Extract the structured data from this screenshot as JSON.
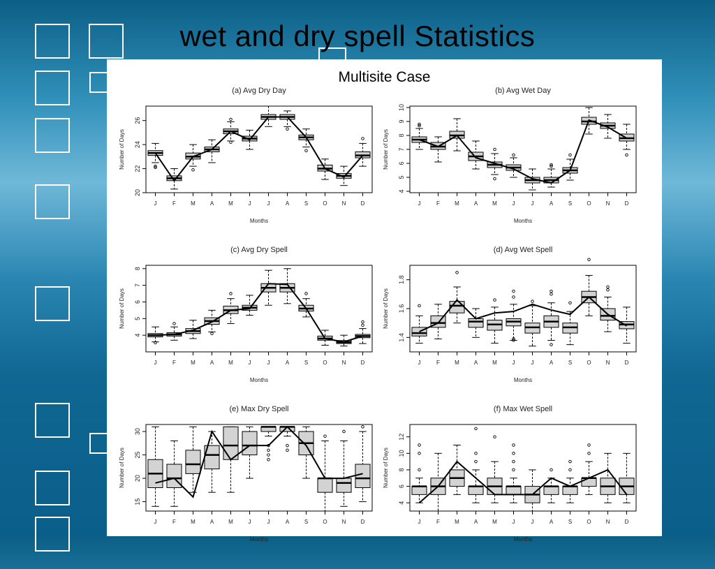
{
  "slide": {
    "title": "wet and dry spell Statistics",
    "subtitle": "Multisite Case",
    "colors": {
      "background": "#0c6a94",
      "deco_border": "#ffffff",
      "panel": "#ffffff",
      "box_fill": "#d3d3d3"
    }
  },
  "chart_data": [
    {
      "type": "box",
      "title": "(a) Avg Dry Day",
      "xlabel": "Months",
      "ylabel": "Number of Days",
      "categories": [
        "J",
        "F",
        "M",
        "A",
        "M",
        "J",
        "J",
        "A",
        "S",
        "O",
        "N",
        "D"
      ],
      "ylim": [
        20,
        27.2
      ],
      "yticks": [
        20,
        22,
        24,
        26
      ],
      "boxes": [
        {
          "min": 22.5,
          "q1": 23.1,
          "median": 23.3,
          "q3": 23.5,
          "max": 24.1,
          "outliers": [
            22.2,
            22.1
          ]
        },
        {
          "min": 20.3,
          "q1": 21.0,
          "median": 21.2,
          "q3": 21.4,
          "max": 22.0,
          "outliers": []
        },
        {
          "min": 22.2,
          "q1": 22.8,
          "median": 23.0,
          "q3": 23.3,
          "max": 24.0,
          "outliers": [
            21.9
          ]
        },
        {
          "min": 22.5,
          "q1": 23.4,
          "median": 23.6,
          "q3": 23.8,
          "max": 24.4,
          "outliers": []
        },
        {
          "min": 24.3,
          "q1": 24.9,
          "median": 25.1,
          "q3": 25.3,
          "max": 25.9,
          "outliers": [
            26.1,
            24.2
          ]
        },
        {
          "min": 23.6,
          "q1": 24.3,
          "median": 24.5,
          "q3": 24.7,
          "max": 25.2,
          "outliers": []
        },
        {
          "min": 25.5,
          "q1": 26.1,
          "median": 26.3,
          "q3": 26.5,
          "max": 27.2,
          "outliers": []
        },
        {
          "min": 25.5,
          "q1": 26.1,
          "median": 26.3,
          "q3": 26.5,
          "max": 26.8,
          "outliers": [
            25.3
          ]
        },
        {
          "min": 23.8,
          "q1": 24.4,
          "median": 24.6,
          "q3": 24.8,
          "max": 25.3,
          "outliers": [
            23.5
          ]
        },
        {
          "min": 21.1,
          "q1": 21.8,
          "median": 22.0,
          "q3": 22.3,
          "max": 22.8,
          "outliers": []
        },
        {
          "min": 20.6,
          "q1": 21.2,
          "median": 21.4,
          "q3": 21.6,
          "max": 22.2,
          "outliers": []
        },
        {
          "min": 22.2,
          "q1": 22.9,
          "median": 23.1,
          "q3": 23.4,
          "max": 24.1,
          "outliers": [
            24.5
          ]
        }
      ],
      "line": [
        23.3,
        21.0,
        23.0,
        23.6,
        25.1,
        24.4,
        26.3,
        26.3,
        24.6,
        22.0,
        21.3,
        23.1
      ]
    },
    {
      "type": "box",
      "title": "(b) Avg Wet Day",
      "xlabel": "Months",
      "ylabel": "Number of Days",
      "categories": [
        "J",
        "F",
        "M",
        "A",
        "M",
        "J",
        "J",
        "A",
        "S",
        "O",
        "N",
        "D"
      ],
      "ylim": [
        3.9,
        10.1
      ],
      "yticks": [
        4,
        5,
        6,
        7,
        8,
        9,
        10
      ],
      "boxes": [
        {
          "min": 7.0,
          "q1": 7.5,
          "median": 7.7,
          "q3": 7.9,
          "max": 8.5,
          "outliers": [
            8.8,
            8.7
          ]
        },
        {
          "min": 6.1,
          "q1": 7.0,
          "median": 7.2,
          "q3": 7.5,
          "max": 7.9,
          "outliers": []
        },
        {
          "min": 6.9,
          "q1": 7.8,
          "median": 8.0,
          "q3": 8.3,
          "max": 9.2,
          "outliers": []
        },
        {
          "min": 5.6,
          "q1": 6.2,
          "median": 6.5,
          "q3": 6.8,
          "max": 7.6,
          "outliers": []
        },
        {
          "min": 5.2,
          "q1": 5.7,
          "median": 5.9,
          "q3": 6.1,
          "max": 6.7,
          "outliers": [
            7.0,
            4.9
          ]
        },
        {
          "min": 5.0,
          "q1": 5.5,
          "median": 5.7,
          "q3": 5.9,
          "max": 6.4,
          "outliers": [
            6.6
          ]
        },
        {
          "min": 4.1,
          "q1": 4.6,
          "median": 4.8,
          "q3": 5.0,
          "max": 5.6,
          "outliers": []
        },
        {
          "min": 4.3,
          "q1": 4.6,
          "median": 4.8,
          "q3": 5.0,
          "max": 5.6,
          "outliers": [
            5.8,
            5.9
          ]
        },
        {
          "min": 4.8,
          "q1": 5.3,
          "median": 5.5,
          "q3": 5.7,
          "max": 6.3,
          "outliers": [
            6.6
          ]
        },
        {
          "min": 8.1,
          "q1": 8.8,
          "median": 9.0,
          "q3": 9.3,
          "max": 10.0,
          "outliers": []
        },
        {
          "min": 7.8,
          "q1": 8.5,
          "median": 8.7,
          "q3": 8.9,
          "max": 9.5,
          "outliers": []
        },
        {
          "min": 7.0,
          "q1": 7.6,
          "median": 7.8,
          "q3": 8.1,
          "max": 8.8,
          "outliers": [
            6.6
          ]
        }
      ],
      "line": [
        7.7,
        7.2,
        8.0,
        6.4,
        6.0,
        5.6,
        4.9,
        4.6,
        5.5,
        9.1,
        8.6,
        7.8
      ]
    },
    {
      "type": "box",
      "title": "(c) Avg Dry Spell",
      "xlabel": "Months",
      "ylabel": "Number of Days",
      "categories": [
        "J",
        "F",
        "M",
        "A",
        "M",
        "J",
        "J",
        "A",
        "S",
        "O",
        "N",
        "D"
      ],
      "ylim": [
        3.0,
        8.2
      ],
      "yticks": [
        4,
        5,
        6,
        7,
        8
      ],
      "boxes": [
        {
          "min": 3.6,
          "q1": 3.9,
          "median": 4.0,
          "q3": 4.1,
          "max": 4.5,
          "outliers": [
            3.55
          ]
        },
        {
          "min": 3.7,
          "q1": 3.95,
          "median": 4.05,
          "q3": 4.15,
          "max": 4.5,
          "outliers": [
            4.7
          ]
        },
        {
          "min": 3.8,
          "q1": 4.1,
          "median": 4.25,
          "q3": 4.4,
          "max": 4.9,
          "outliers": []
        },
        {
          "min": 4.2,
          "q1": 4.65,
          "median": 4.85,
          "q3": 5.05,
          "max": 5.5,
          "outliers": [
            4.1
          ]
        },
        {
          "min": 4.7,
          "q1": 5.3,
          "median": 5.5,
          "q3": 5.75,
          "max": 6.2,
          "outliers": [
            6.5
          ]
        },
        {
          "min": 5.2,
          "q1": 5.5,
          "median": 5.65,
          "q3": 5.8,
          "max": 6.4,
          "outliers": []
        },
        {
          "min": 5.8,
          "q1": 6.6,
          "median": 6.85,
          "q3": 7.1,
          "max": 7.9,
          "outliers": []
        },
        {
          "min": 5.9,
          "q1": 6.6,
          "median": 6.85,
          "q3": 7.1,
          "max": 8.0,
          "outliers": []
        },
        {
          "min": 5.1,
          "q1": 5.45,
          "median": 5.6,
          "q3": 5.8,
          "max": 6.2,
          "outliers": [
            6.5
          ]
        },
        {
          "min": 3.4,
          "q1": 3.7,
          "median": 3.8,
          "q3": 3.95,
          "max": 4.3,
          "outliers": []
        },
        {
          "min": 3.35,
          "q1": 3.5,
          "median": 3.58,
          "q3": 3.68,
          "max": 4.0,
          "outliers": []
        },
        {
          "min": 3.5,
          "q1": 3.85,
          "median": 3.95,
          "q3": 4.05,
          "max": 4.4,
          "outliers": [
            4.6,
            4.8
          ]
        }
      ],
      "line": [
        4.0,
        4.05,
        4.3,
        4.8,
        5.5,
        5.6,
        7.1,
        7.05,
        5.6,
        3.8,
        3.6,
        3.95
      ]
    },
    {
      "type": "box",
      "title": "(d) Avg Wet Spell",
      "xlabel": "Months",
      "ylabel": "Number of Days",
      "categories": [
        "J",
        "F",
        "M",
        "A",
        "M",
        "J",
        "J",
        "A",
        "S",
        "O",
        "N",
        "D"
      ],
      "ylim": [
        1.3,
        1.9
      ],
      "yticks": [
        1.4,
        1.6,
        1.8
      ],
      "boxes": [
        {
          "min": 1.36,
          "q1": 1.41,
          "median": 1.43,
          "q3": 1.47,
          "max": 1.55,
          "outliers": [
            1.62
          ]
        },
        {
          "min": 1.39,
          "q1": 1.47,
          "median": 1.5,
          "q3": 1.55,
          "max": 1.63,
          "outliers": []
        },
        {
          "min": 1.5,
          "q1": 1.57,
          "median": 1.62,
          "q3": 1.65,
          "max": 1.75,
          "outliers": [
            1.85
          ]
        },
        {
          "min": 1.4,
          "q1": 1.47,
          "median": 1.51,
          "q3": 1.53,
          "max": 1.6,
          "outliers": []
        },
        {
          "min": 1.36,
          "q1": 1.45,
          "median": 1.49,
          "q3": 1.52,
          "max": 1.61,
          "outliers": [
            1.66
          ]
        },
        {
          "min": 1.38,
          "q1": 1.48,
          "median": 1.51,
          "q3": 1.53,
          "max": 1.63,
          "outliers": [
            1.68,
            1.72,
            1.39,
            1.38
          ]
        },
        {
          "min": 1.34,
          "q1": 1.43,
          "median": 1.47,
          "q3": 1.5,
          "max": 1.62,
          "outliers": [
            1.65
          ]
        },
        {
          "min": 1.38,
          "q1": 1.47,
          "median": 1.51,
          "q3": 1.55,
          "max": 1.64,
          "outliers": [
            1.7,
            1.72,
            1.35
          ]
        },
        {
          "min": 1.35,
          "q1": 1.43,
          "median": 1.47,
          "q3": 1.5,
          "max": 1.58,
          "outliers": [
            1.64
          ]
        },
        {
          "min": 1.55,
          "q1": 1.64,
          "median": 1.68,
          "q3": 1.72,
          "max": 1.83,
          "outliers": [
            1.94
          ]
        },
        {
          "min": 1.44,
          "q1": 1.52,
          "median": 1.55,
          "q3": 1.6,
          "max": 1.68,
          "outliers": [
            1.73,
            1.75
          ]
        },
        {
          "min": 1.36,
          "q1": 1.46,
          "median": 1.49,
          "q3": 1.51,
          "max": 1.61,
          "outliers": []
        }
      ],
      "line": [
        1.44,
        1.5,
        1.66,
        1.53,
        1.57,
        1.58,
        1.63,
        1.59,
        1.56,
        1.68,
        1.56,
        1.48
      ]
    },
    {
      "type": "box",
      "title": "(e) Max Dry Spell",
      "xlabel": "Months",
      "ylabel": "Number of Days",
      "categories": [
        "J",
        "F",
        "M",
        "A",
        "M",
        "J",
        "J",
        "A",
        "S",
        "O",
        "N",
        "D"
      ],
      "ylim": [
        13,
        31.5
      ],
      "yticks": [
        15,
        20,
        25,
        30
      ],
      "boxes": [
        {
          "min": 14,
          "q1": 18,
          "median": 21,
          "q3": 24,
          "max": 31,
          "outliers": []
        },
        {
          "min": 14,
          "q1": 18,
          "median": 20,
          "q3": 23,
          "max": 28,
          "outliers": []
        },
        {
          "min": 17,
          "q1": 21,
          "median": 23,
          "q3": 26,
          "max": 31,
          "outliers": []
        },
        {
          "min": 17,
          "q1": 22,
          "median": 25,
          "q3": 27,
          "max": 30,
          "outliers": []
        },
        {
          "min": 17,
          "q1": 24,
          "median": 27,
          "q3": 31,
          "max": 31,
          "outliers": []
        },
        {
          "min": 20,
          "q1": 25,
          "median": 27,
          "q3": 30,
          "max": 31,
          "outliers": []
        },
        {
          "min": 29,
          "q1": 30,
          "median": 31,
          "q3": 31,
          "max": 31,
          "outliers": [
            24,
            25,
            26,
            27
          ]
        },
        {
          "min": 29,
          "q1": 30,
          "median": 31,
          "q3": 31,
          "max": 31,
          "outliers": [
            26,
            27
          ]
        },
        {
          "min": 20,
          "q1": 25,
          "median": 27.5,
          "q3": 30,
          "max": 31,
          "outliers": []
        },
        {
          "min": 13,
          "q1": 17,
          "median": 20,
          "q3": 20,
          "max": 28,
          "outliers": [
            29
          ]
        },
        {
          "min": 14,
          "q1": 17,
          "median": 19,
          "q3": 20,
          "max": 28,
          "outliers": [
            30
          ]
        },
        {
          "min": 15,
          "q1": 18,
          "median": 20,
          "q3": 23,
          "max": 30,
          "outliers": [
            31
          ]
        }
      ],
      "line": [
        19,
        20,
        16,
        30,
        24,
        27,
        27,
        31,
        27,
        20,
        20,
        21
      ]
    },
    {
      "type": "box",
      "title": "(f) Max Wet Spell",
      "xlabel": "Months",
      "ylabel": "Number of Days",
      "categories": [
        "J",
        "F",
        "M",
        "A",
        "M",
        "J",
        "J",
        "A",
        "S",
        "O",
        "N",
        "D"
      ],
      "ylim": [
        3,
        13.5
      ],
      "yticks": [
        4,
        6,
        8,
        10,
        12
      ],
      "boxes": [
        {
          "min": 4,
          "q1": 5,
          "median": 6,
          "q3": 6,
          "max": 7,
          "outliers": [
            8,
            10,
            11
          ]
        },
        {
          "min": 3,
          "q1": 5,
          "median": 6,
          "q3": 7,
          "max": 10,
          "outliers": []
        },
        {
          "min": 5,
          "q1": 6,
          "median": 7,
          "q3": 8,
          "max": 11,
          "outliers": []
        },
        {
          "min": 4,
          "q1": 5,
          "median": 6,
          "q3": 6,
          "max": 8,
          "outliers": [
            9,
            10,
            13
          ]
        },
        {
          "min": 4,
          "q1": 5,
          "median": 6,
          "q3": 7,
          "max": 9,
          "outliers": [
            12
          ]
        },
        {
          "min": 4,
          "q1": 5,
          "median": 6,
          "q3": 6,
          "max": 7,
          "outliers": [
            8,
            9,
            10,
            11
          ]
        },
        {
          "min": 3,
          "q1": 4,
          "median": 5,
          "q3": 6,
          "max": 8,
          "outliers": []
        },
        {
          "min": 4,
          "q1": 5,
          "median": 6,
          "q3": 6,
          "max": 7,
          "outliers": [
            8
          ]
        },
        {
          "min": 4,
          "q1": 5,
          "median": 6,
          "q3": 6,
          "max": 7,
          "outliers": [
            8,
            9
          ]
        },
        {
          "min": 5,
          "q1": 6,
          "median": 7,
          "q3": 7,
          "max": 9,
          "outliers": [
            10,
            11
          ]
        },
        {
          "min": 4,
          "q1": 5,
          "median": 6,
          "q3": 7,
          "max": 10,
          "outliers": []
        },
        {
          "min": 4,
          "q1": 5,
          "median": 6,
          "q3": 7,
          "max": 10,
          "outliers": []
        }
      ],
      "line": [
        4,
        6,
        9,
        7,
        5,
        5,
        5,
        7,
        6,
        7,
        8,
        5
      ]
    }
  ]
}
